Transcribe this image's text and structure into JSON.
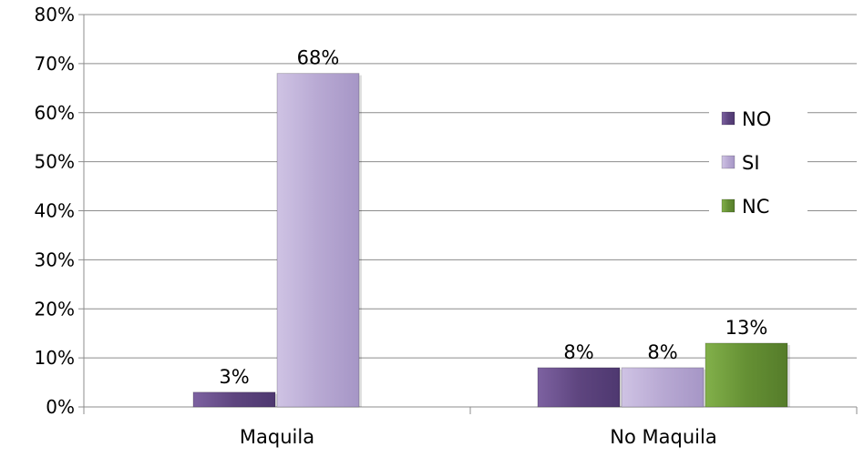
{
  "chart_data": {
    "type": "bar",
    "categories": [
      "Maquila",
      "No Maquila"
    ],
    "series": [
      {
        "name": "NO",
        "values": [
          3,
          8
        ],
        "labels": [
          "3%",
          "8%"
        ],
        "color": "#6a4f8c"
      },
      {
        "name": "SI",
        "values": [
          68,
          8
        ],
        "labels": [
          "68%",
          "8%"
        ],
        "color": "#bcaed6"
      },
      {
        "name": "NC",
        "values": [
          null,
          13
        ],
        "labels": [
          "",
          "13%"
        ],
        "color": "#6f9a3a"
      }
    ],
    "ylim": [
      0,
      80
    ],
    "yticks": [
      0,
      10,
      20,
      30,
      40,
      50,
      60,
      70,
      80
    ],
    "ytick_labels": [
      "0%",
      "10%",
      "20%",
      "30%",
      "40%",
      "50%",
      "60%",
      "70%",
      "80%"
    ],
    "grid": true,
    "legend_position": "right",
    "title": "",
    "xlabel": "",
    "ylabel": ""
  }
}
